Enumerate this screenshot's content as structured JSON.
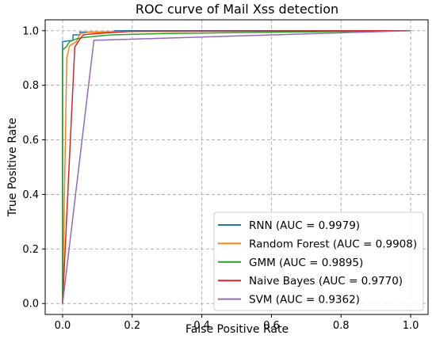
{
  "chart_data": {
    "type": "line",
    "title": "ROC curve of Mail Xss detection",
    "xlabel": "False Positive Rate",
    "ylabel": "True Positive Rate",
    "xlim": [
      -0.05,
      1.05
    ],
    "ylim": [
      -0.04,
      1.04
    ],
    "xticks": [
      0.0,
      0.2,
      0.4,
      0.6,
      0.8,
      1.0
    ],
    "yticks": [
      0.0,
      0.2,
      0.4,
      0.6,
      0.8,
      1.0
    ],
    "xtick_labels": [
      "0.0",
      "0.2",
      "0.4",
      "0.6",
      "0.8",
      "1.0"
    ],
    "ytick_labels": [
      "0.0",
      "0.2",
      "0.4",
      "0.6",
      "0.8",
      "1.0"
    ],
    "grid": true,
    "legend_position": "bottom-right",
    "series": [
      {
        "name": "RNN (AUC = 0.9979)",
        "color": "#1f77b4",
        "points": [
          [
            0.0,
            0.0
          ],
          [
            0.0,
            0.96
          ],
          [
            0.03,
            0.965
          ],
          [
            0.03,
            0.985
          ],
          [
            0.05,
            0.985
          ],
          [
            0.05,
            0.995
          ],
          [
            0.15,
            0.995
          ],
          [
            0.15,
            1.0
          ],
          [
            1.0,
            1.0
          ]
        ]
      },
      {
        "name": "Random Forest (AUC = 0.9908)",
        "color": "#ff7f0e",
        "points": [
          [
            0.0,
            0.0
          ],
          [
            0.012,
            0.9
          ],
          [
            0.02,
            0.945
          ],
          [
            0.04,
            0.96
          ],
          [
            0.05,
            0.99
          ],
          [
            0.08,
            0.995
          ],
          [
            0.17,
            0.997
          ],
          [
            1.0,
            1.0
          ]
        ]
      },
      {
        "name": "GMM (AUC = 0.9895)",
        "color": "#2ca02c",
        "points": [
          [
            0.0,
            0.0
          ],
          [
            0.0,
            0.93
          ],
          [
            0.01,
            0.94
          ],
          [
            0.02,
            0.96
          ],
          [
            0.04,
            0.97
          ],
          [
            0.06,
            0.975
          ],
          [
            0.14,
            0.985
          ],
          [
            0.3,
            0.99
          ],
          [
            1.0,
            1.0
          ]
        ]
      },
      {
        "name": "Naive Bayes (AUC = 0.9770)",
        "color": "#d62728",
        "points": [
          [
            0.0,
            0.0
          ],
          [
            0.035,
            0.94
          ],
          [
            0.05,
            0.97
          ],
          [
            0.06,
            0.985
          ],
          [
            0.1,
            0.99
          ],
          [
            0.2,
            0.998
          ],
          [
            1.0,
            1.0
          ]
        ]
      },
      {
        "name": "SVM (AUC = 0.9362)",
        "color": "#9467bd",
        "points": [
          [
            0.0,
            0.0
          ],
          [
            0.09,
            0.965
          ],
          [
            1.0,
            1.0
          ]
        ]
      }
    ]
  }
}
